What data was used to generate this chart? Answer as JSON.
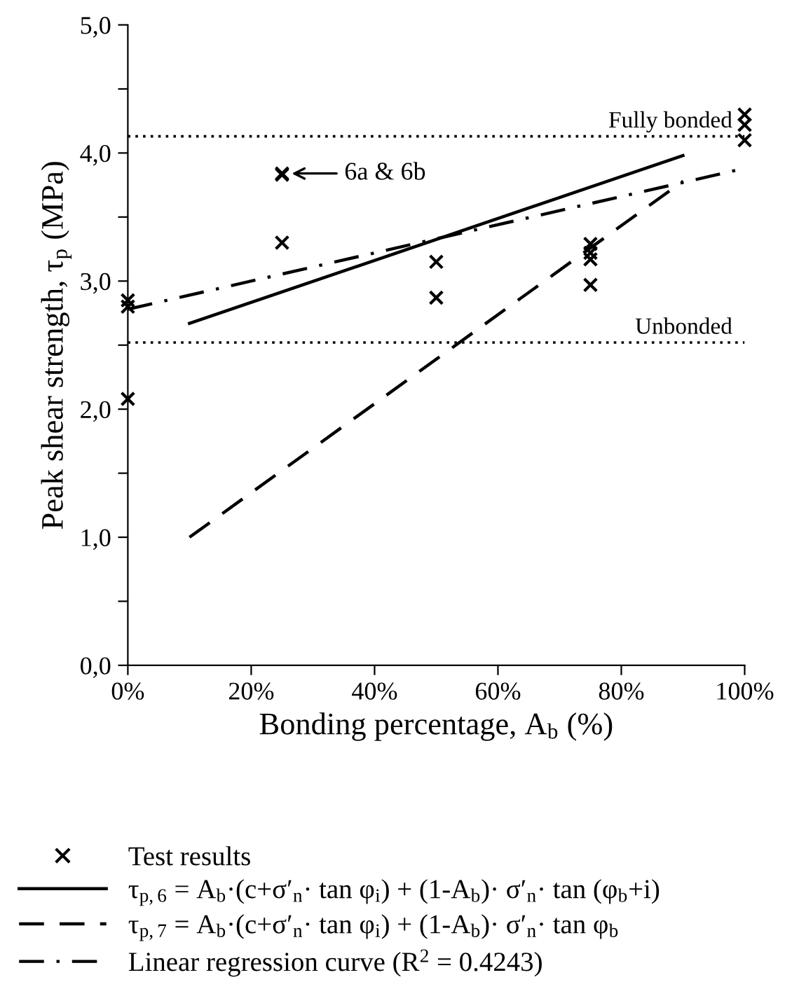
{
  "chart_data": {
    "type": "scatter",
    "xlabel": "Bonding percentage, A$_{b}$ (%)",
    "ylabel": "Peak shear strength, τ$_{p}$ (MPa)",
    "xlim": [
      0,
      100
    ],
    "ylim": [
      0,
      5
    ],
    "xticks": [
      {
        "value": 0,
        "label": "0%"
      },
      {
        "value": 20,
        "label": "20%"
      },
      {
        "value": 40,
        "label": "40%"
      },
      {
        "value": 60,
        "label": "60%"
      },
      {
        "value": 80,
        "label": "80%"
      },
      {
        "value": 100,
        "label": "100%"
      }
    ],
    "yticks": [
      {
        "value": 0,
        "label": "0,0"
      },
      {
        "value": 0.5,
        "label": null
      },
      {
        "value": 1,
        "label": "1,0"
      },
      {
        "value": 1.5,
        "label": null
      },
      {
        "value": 2,
        "label": "2,0"
      },
      {
        "value": 2.5,
        "label": null
      },
      {
        "value": 3,
        "label": "3,0"
      },
      {
        "value": 3.5,
        "label": null
      },
      {
        "value": 4,
        "label": "4,0"
      },
      {
        "value": 4.5,
        "label": null
      },
      {
        "value": 5,
        "label": "5,0"
      }
    ],
    "series": [
      {
        "name": "Test results",
        "marker": "cross",
        "color": "#000000",
        "x": [
          0,
          0,
          0,
          25,
          25,
          25,
          50,
          50,
          75,
          75,
          75,
          75,
          100,
          100,
          100
        ],
        "values": [
          2.85,
          2.8,
          2.08,
          3.84,
          3.83,
          3.3,
          3.15,
          2.87,
          3.29,
          3.22,
          3.17,
          2.97,
          4.3,
          4.22,
          4.1
        ]
      },
      {
        "name": "τ$_{p,6}$ = A$_{b}$·(c+σ′$_{n}$· tan φ$_{i}$) + (1-A$_{b}$)· σ′$_{n}$· tan (φ$_{b}$+i)",
        "type": "line",
        "line_style": "solid",
        "color": "#000000",
        "x": [
          10,
          90
        ],
        "values": [
          2.67,
          3.98
        ]
      },
      {
        "name": "τ$_{p,7}$ = A$_{b}$·(c+σ′$_{n}$· tan φ$_{i}$) + (1-A$_{b}$)· σ′$_{n}$· tan φ$_{b}$",
        "type": "line",
        "line_style": "dashed",
        "color": "#000000",
        "x": [
          10,
          90
        ],
        "values": [
          1.0,
          3.78
        ]
      },
      {
        "name": "Linear regression curve (R$^{2}$ = 0.4243)",
        "type": "line",
        "line_style": "dashdot",
        "color": "#000000",
        "x": [
          0,
          100
        ],
        "values": [
          2.78,
          3.88
        ]
      }
    ],
    "ref_lines": [
      {
        "axis": "y",
        "value": 4.13,
        "label": "Fully bonded",
        "line_style": "dotted",
        "color": "#000000"
      },
      {
        "axis": "y",
        "value": 2.52,
        "label": "Unbonded",
        "line_style": "dotted",
        "color": "#000000"
      }
    ],
    "annotations": [
      {
        "text": "6a & 6b",
        "x": 25,
        "y": 3.84
      }
    ],
    "grid": false,
    "legend": "bottom"
  }
}
